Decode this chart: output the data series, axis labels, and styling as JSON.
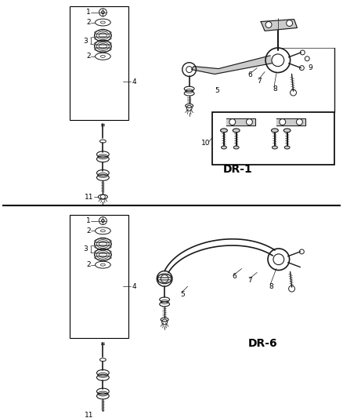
{
  "bg_color": "#ffffff",
  "border_color": "#000000",
  "line_color": "#1a1a1a",
  "gray_color": "#888888",
  "light_gray": "#cccccc",
  "fig_width": 4.38,
  "fig_height": 5.33,
  "dpi": 100
}
